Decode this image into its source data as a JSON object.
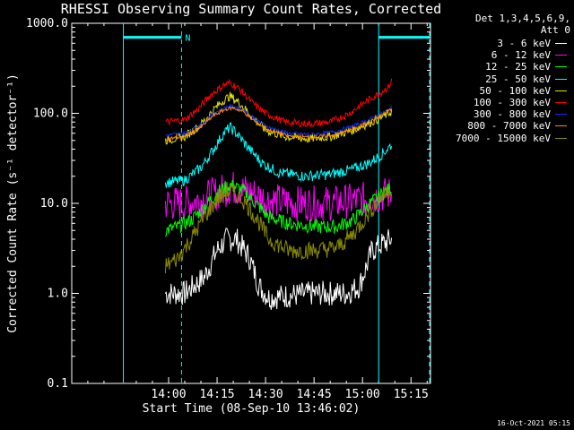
{
  "chart_data": {
    "type": "line",
    "title": "RHESSI Observing Summary Count Rates, Corrected",
    "xlabel": "Start Time (08-Sep-10 13:46:02)",
    "ylabel": "Corrected Count Rate (s⁻¹ detector⁻¹)",
    "yscale": "log",
    "ylim": [
      0.1,
      1000.0
    ],
    "xlim_minutes": [
      -16,
      95
    ],
    "x_ticks": [
      "14:00",
      "14:15",
      "14:30",
      "14:45",
      "15:00",
      "15:15"
    ],
    "y_ticks": [
      "0.1",
      "1.0",
      "10.0",
      "100.0",
      "1000.0"
    ],
    "detectors": [
      "Det 1,3,4,5,6,9,",
      "Att 0"
    ],
    "data_start": "13:59",
    "data_end": "15:09",
    "night_intervals": [
      {
        "start": "13:46",
        "end": "14:04",
        "label": "N"
      },
      {
        "start": "15:05",
        "end": "15:23",
        "label": ""
      }
    ],
    "series": [
      {
        "name": "3 - 6 keV",
        "color": "#ffffff",
        "points": [
          [
            "13:59",
            1.0
          ],
          [
            "14:05",
            1.0
          ],
          [
            "14:11",
            1.5
          ],
          [
            "14:15",
            3.0
          ],
          [
            "14:18",
            4.0
          ],
          [
            "14:21",
            4.0
          ],
          [
            "14:25",
            2.5
          ],
          [
            "14:28",
            1.2
          ],
          [
            "14:31",
            0.9
          ],
          [
            "14:45",
            1.0
          ],
          [
            "14:55",
            1.0
          ],
          [
            "14:59",
            1.2
          ],
          [
            "15:03",
            3.0
          ],
          [
            "15:06",
            3.5
          ],
          [
            "15:09",
            4.0
          ]
        ]
      },
      {
        "name": "6 - 12 keV",
        "color": "#ff00ff",
        "points": [
          [
            "13:59",
            10.0
          ],
          [
            "14:05",
            10.0
          ],
          [
            "14:10",
            11.0
          ],
          [
            "14:15",
            13.0
          ],
          [
            "14:19",
            15.0
          ],
          [
            "14:22",
            14.5
          ],
          [
            "14:26",
            13.0
          ],
          [
            "14:30",
            11.0
          ],
          [
            "14:40",
            10.0
          ],
          [
            "14:50",
            10.0
          ],
          [
            "15:00",
            11.0
          ],
          [
            "15:05",
            12.0
          ],
          [
            "15:09",
            13.0
          ]
        ]
      },
      {
        "name": "12 - 25 keV",
        "color": "#00ff00",
        "points": [
          [
            "13:59",
            5.0
          ],
          [
            "14:03",
            5.5
          ],
          [
            "14:07",
            6.5
          ],
          [
            "14:12",
            10.0
          ],
          [
            "14:16",
            14.0
          ],
          [
            "14:19",
            16.0
          ],
          [
            "14:23",
            14.0
          ],
          [
            "14:27",
            10.0
          ],
          [
            "14:31",
            7.0
          ],
          [
            "14:37",
            6.0
          ],
          [
            "14:45",
            5.5
          ],
          [
            "14:52",
            5.5
          ],
          [
            "14:57",
            6.5
          ],
          [
            "15:01",
            9.0
          ],
          [
            "15:05",
            12.0
          ],
          [
            "15:09",
            15.0
          ]
        ]
      },
      {
        "name": "25 - 50 keV",
        "color": "#00ffff",
        "points": [
          [
            "13:59",
            17.0
          ],
          [
            "14:05",
            18.0
          ],
          [
            "14:10",
            25.0
          ],
          [
            "14:14",
            40.0
          ],
          [
            "14:17",
            60.0
          ],
          [
            "14:19",
            70.0
          ],
          [
            "14:21",
            60.0
          ],
          [
            "14:25",
            40.0
          ],
          [
            "14:29",
            28.0
          ],
          [
            "14:34",
            22.0
          ],
          [
            "14:42",
            20.0
          ],
          [
            "14:50",
            21.0
          ],
          [
            "14:57",
            24.0
          ],
          [
            "15:02",
            28.0
          ],
          [
            "15:06",
            35.0
          ],
          [
            "15:09",
            45.0
          ]
        ]
      },
      {
        "name": "50 - 100 keV",
        "color": "#e0e000",
        "points": [
          [
            "13:59",
            50.0
          ],
          [
            "14:05",
            55.0
          ],
          [
            "14:10",
            75.0
          ],
          [
            "14:14",
            110.0
          ],
          [
            "14:17",
            140.0
          ],
          [
            "14:19",
            155.0
          ],
          [
            "14:22",
            130.0
          ],
          [
            "14:26",
            90.0
          ],
          [
            "14:30",
            65.0
          ],
          [
            "14:36",
            55.0
          ],
          [
            "14:43",
            52.0
          ],
          [
            "14:50",
            55.0
          ],
          [
            "14:57",
            65.0
          ],
          [
            "15:02",
            78.0
          ],
          [
            "15:06",
            90.0
          ],
          [
            "15:09",
            105.0
          ]
        ]
      },
      {
        "name": "100 - 300 keV",
        "color": "#ff0000",
        "points": [
          [
            "13:59",
            80.0
          ],
          [
            "14:05",
            85.0
          ],
          [
            "14:09",
            110.0
          ],
          [
            "14:13",
            160.0
          ],
          [
            "14:17",
            205.0
          ],
          [
            "14:19",
            220.0
          ],
          [
            "14:22",
            185.0
          ],
          [
            "14:26",
            130.0
          ],
          [
            "14:30",
            100.0
          ],
          [
            "14:36",
            80.0
          ],
          [
            "14:43",
            76.0
          ],
          [
            "14:50",
            80.0
          ],
          [
            "14:56",
            100.0
          ],
          [
            "15:01",
            135.0
          ],
          [
            "15:05",
            165.0
          ],
          [
            "15:08",
            195.0
          ],
          [
            "15:09",
            230.0
          ]
        ]
      },
      {
        "name": "300 - 800 keV",
        "color": "#1428ff",
        "points": [
          [
            "13:59",
            57.0
          ],
          [
            "14:05",
            60.0
          ],
          [
            "14:10",
            75.0
          ],
          [
            "14:14",
            100.0
          ],
          [
            "14:18",
            118.0
          ],
          [
            "14:20",
            120.0
          ],
          [
            "14:23",
            110.0
          ],
          [
            "14:27",
            85.0
          ],
          [
            "14:31",
            70.0
          ],
          [
            "14:37",
            60.0
          ],
          [
            "14:44",
            58.0
          ],
          [
            "14:51",
            62.0
          ],
          [
            "14:57",
            72.0
          ],
          [
            "15:02",
            85.0
          ],
          [
            "15:06",
            100.0
          ],
          [
            "15:09",
            115.0
          ]
        ]
      },
      {
        "name": "800 - 7000 keV",
        "color": "#ff8c00",
        "points": [
          [
            "13:59",
            52.0
          ],
          [
            "14:05",
            55.0
          ],
          [
            "14:10",
            70.0
          ],
          [
            "14:14",
            95.0
          ],
          [
            "14:18",
            112.0
          ],
          [
            "14:20",
            115.0
          ],
          [
            "14:23",
            105.0
          ],
          [
            "14:27",
            80.0
          ],
          [
            "14:31",
            65.0
          ],
          [
            "14:37",
            56.0
          ],
          [
            "14:44",
            54.0
          ],
          [
            "14:51",
            57.0
          ],
          [
            "14:57",
            66.0
          ],
          [
            "15:02",
            80.0
          ],
          [
            "15:06",
            95.0
          ],
          [
            "15:09",
            110.0
          ]
        ]
      },
      {
        "name": "7000 - 15000 keV",
        "color": "#8b8b00",
        "points": [
          [
            "13:59",
            2.0
          ],
          [
            "14:03",
            2.5
          ],
          [
            "14:07",
            4.0
          ],
          [
            "14:11",
            7.0
          ],
          [
            "14:15",
            11.0
          ],
          [
            "14:19",
            14.0
          ],
          [
            "14:23",
            11.0
          ],
          [
            "14:27",
            7.0
          ],
          [
            "14:31",
            4.0
          ],
          [
            "14:37",
            3.0
          ],
          [
            "14:45",
            3.0
          ],
          [
            "14:52",
            3.2
          ],
          [
            "14:57",
            4.5
          ],
          [
            "15:01",
            7.0
          ],
          [
            "15:05",
            11.0
          ],
          [
            "15:09",
            15.0
          ]
        ]
      }
    ],
    "colors": {
      "axes": "#ffffff",
      "night_bar": "#00ffff",
      "background": "#000000"
    }
  },
  "footer": {
    "timestamp": "16-Oct-2021 05:15"
  }
}
